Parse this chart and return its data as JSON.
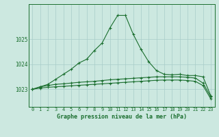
{
  "title": "Graphe pression niveau de la mer (hPa)",
  "background_color": "#cce8e0",
  "grid_color": "#a8ccc8",
  "line_color": "#1a6e2e",
  "xlim": [
    -0.5,
    23.5
  ],
  "ylim": [
    1022.3,
    1026.4
  ],
  "yticks": [
    1023,
    1024,
    1025
  ],
  "xticks": [
    0,
    1,
    2,
    3,
    4,
    5,
    6,
    7,
    8,
    9,
    10,
    11,
    12,
    13,
    14,
    15,
    16,
    17,
    18,
    19,
    20,
    21,
    22,
    23
  ],
  "line1_x": [
    0,
    1,
    2,
    3,
    4,
    5,
    6,
    7,
    8,
    9,
    10,
    11,
    12,
    13,
    14,
    15,
    16,
    17,
    18,
    19,
    20,
    21,
    22,
    23
  ],
  "line1_y": [
    1023.0,
    1023.1,
    1023.2,
    1023.4,
    1023.6,
    1023.8,
    1024.05,
    1024.2,
    1024.55,
    1024.85,
    1025.45,
    1025.95,
    1025.95,
    1025.2,
    1024.6,
    1024.1,
    1023.75,
    1023.6,
    1023.58,
    1023.6,
    1023.55,
    1023.55,
    1023.5,
    1022.75
  ],
  "line2_x": [
    0,
    1,
    2,
    3,
    4,
    5,
    6,
    7,
    8,
    9,
    10,
    11,
    12,
    13,
    14,
    15,
    16,
    17,
    18,
    19,
    20,
    21,
    22,
    23
  ],
  "line2_y": [
    1023.0,
    1023.1,
    1023.15,
    1023.2,
    1023.22,
    1023.25,
    1023.28,
    1023.3,
    1023.32,
    1023.35,
    1023.38,
    1023.4,
    1023.42,
    1023.44,
    1023.46,
    1023.48,
    1023.5,
    1023.5,
    1023.5,
    1023.5,
    1023.48,
    1023.45,
    1023.25,
    1022.7
  ],
  "line3_x": [
    0,
    1,
    2,
    3,
    4,
    5,
    6,
    7,
    8,
    9,
    10,
    11,
    12,
    13,
    14,
    15,
    16,
    17,
    18,
    19,
    20,
    21,
    22,
    23
  ],
  "line3_y": [
    1023.0,
    1023.05,
    1023.08,
    1023.1,
    1023.12,
    1023.14,
    1023.16,
    1023.18,
    1023.2,
    1023.22,
    1023.24,
    1023.26,
    1023.28,
    1023.3,
    1023.32,
    1023.34,
    1023.36,
    1023.37,
    1023.37,
    1023.37,
    1023.35,
    1023.32,
    1023.15,
    1022.62
  ],
  "marker": "+",
  "markersize": 3.5,
  "linewidth": 0.8
}
